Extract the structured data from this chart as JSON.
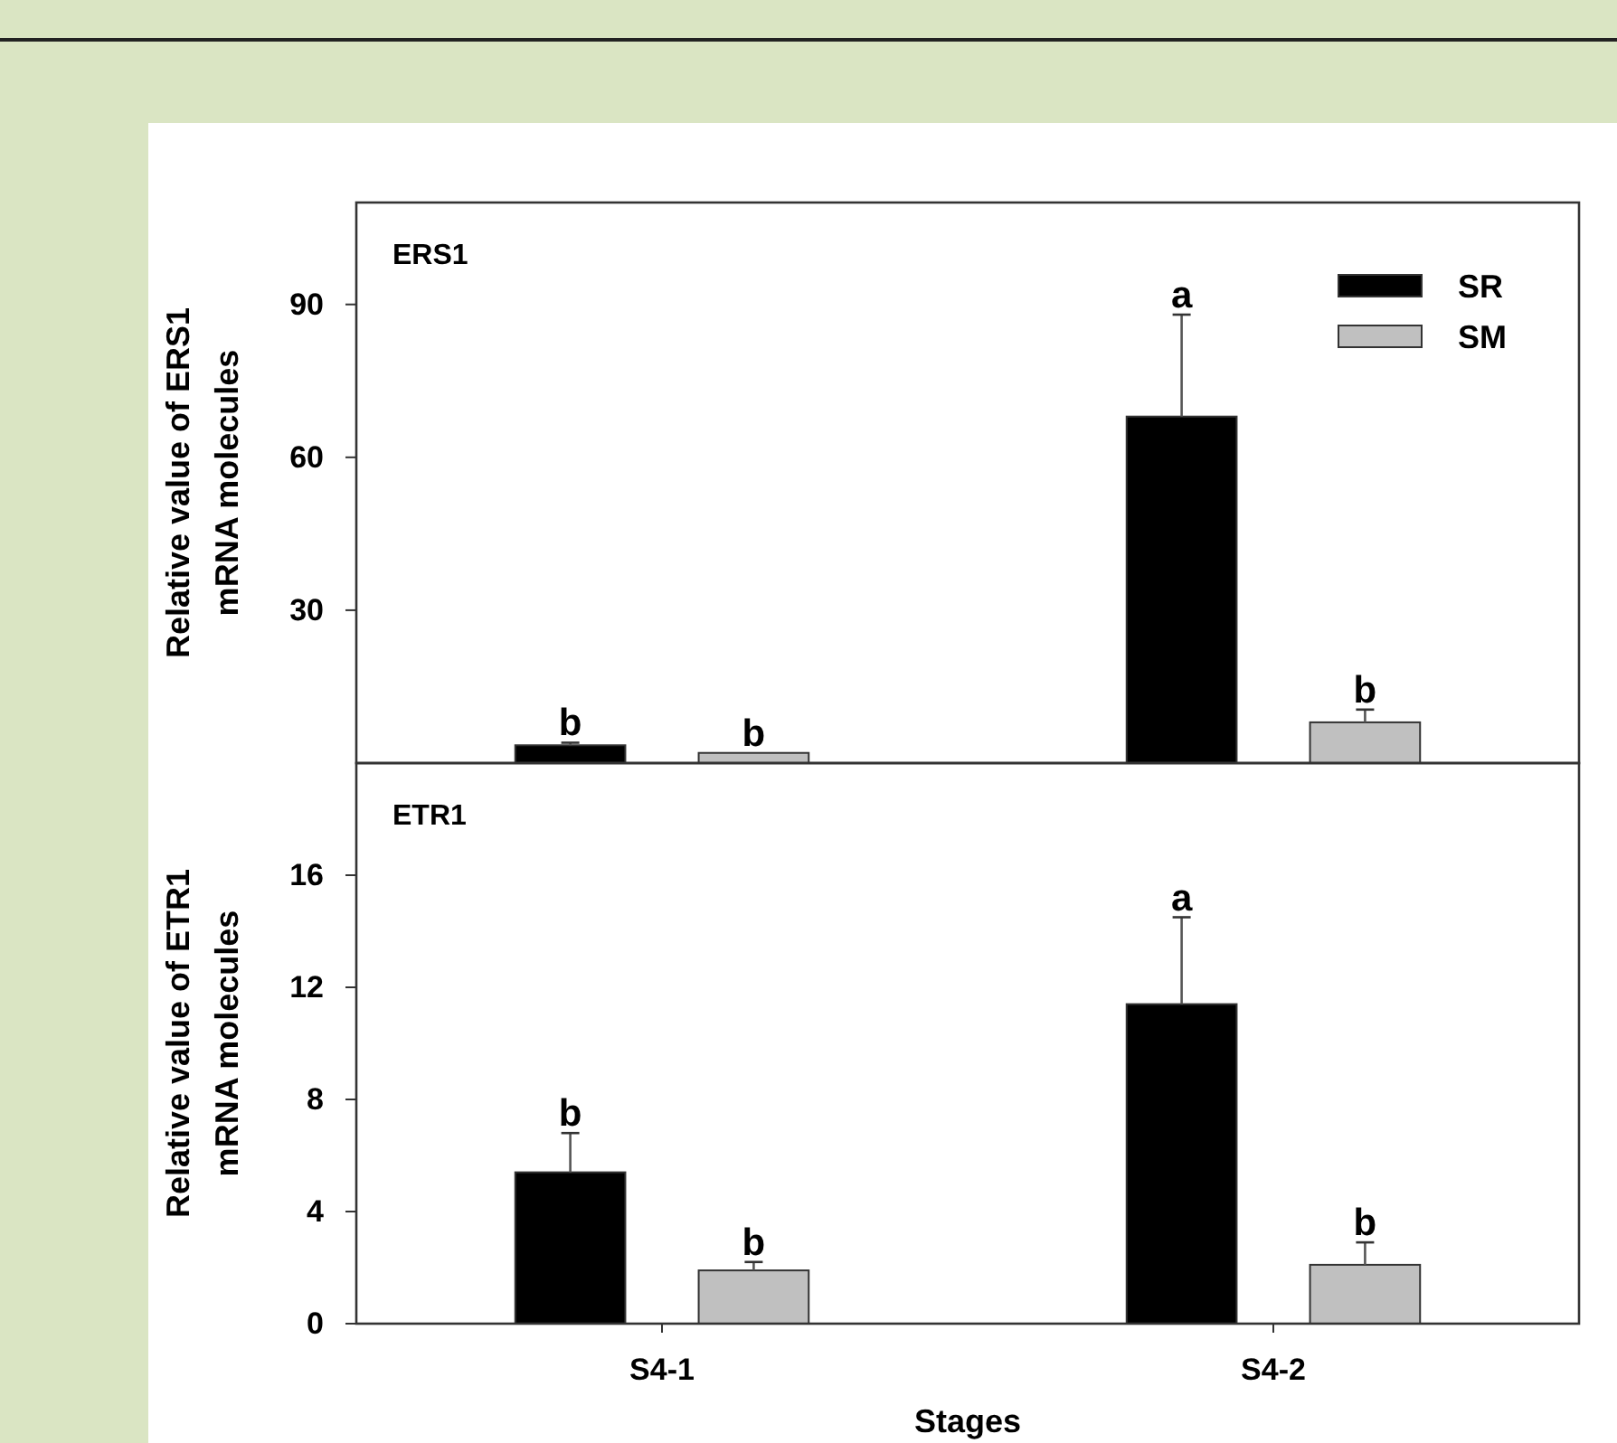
{
  "chart_data": [
    {
      "type": "bar",
      "title": "ERS1",
      "ylabel": "Relative value of ERS1\nmRNA molecules",
      "categories": [
        null,
        null
      ],
      "series": [
        {
          "name": "SR",
          "color": "#000000",
          "values": [
            3.5,
            68
          ],
          "errors": [
            [
              3.5,
              4
            ],
            [
              68,
              88
            ]
          ],
          "value_labels": [
            "b",
            "a"
          ]
        },
        {
          "name": "SM",
          "color": "#c0c0c0",
          "values": [
            2,
            8
          ],
          "errors": [
            null,
            [
              8,
              10.5
            ]
          ],
          "value_labels": [
            "b",
            "b"
          ]
        }
      ],
      "ylim": [
        0,
        110
      ],
      "yticks": [
        30,
        60,
        90
      ],
      "legend": "top right",
      "tick_labels": "y"
    },
    {
      "type": "bar",
      "title": "ETR1",
      "ylabel": "Relative value of ETR1\nmRNA molecules",
      "xlabel": "Stages",
      "categories": [
        "S4-1",
        "S4-2"
      ],
      "series": [
        {
          "color": "#000000",
          "values": [
            5.4,
            11.4
          ],
          "errors": [
            [
              5.4,
              6.8
            ],
            [
              11.4,
              14.5
            ]
          ],
          "value_labels": [
            "b",
            "a"
          ]
        },
        {
          "color": "#c0c0c0",
          "values": [
            1.9,
            2.1
          ],
          "errors": [
            [
              1.9,
              2.2
            ],
            [
              2.1,
              2.9
            ]
          ],
          "value_labels": [
            "b",
            "b"
          ]
        }
      ],
      "ylim": [
        0,
        20
      ],
      "yticks": [
        0,
        4,
        8,
        12,
        16
      ]
    }
  ]
}
